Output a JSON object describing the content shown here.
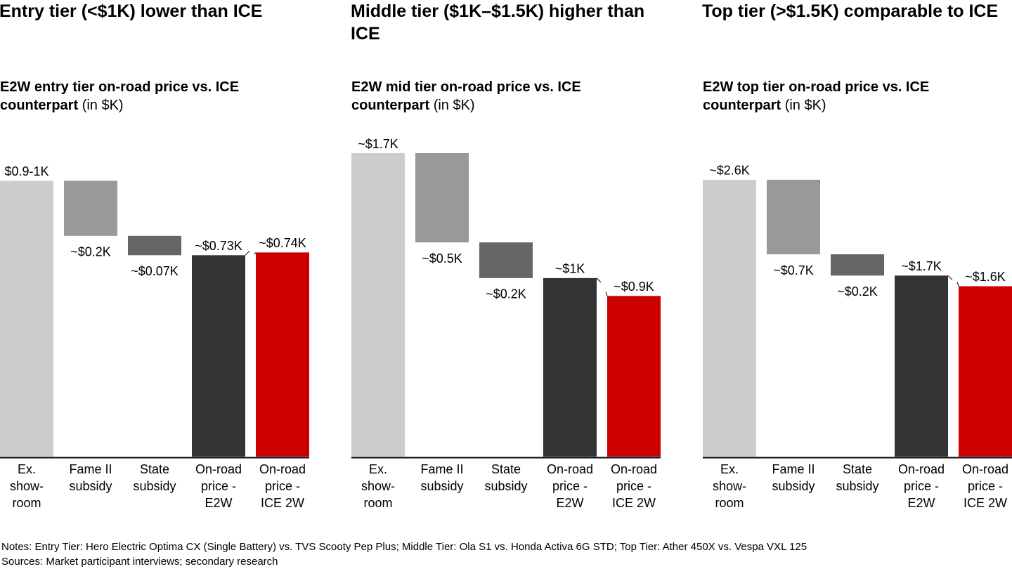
{
  "chart_data": [
    {
      "type": "waterfall",
      "title": "Entry tier (<$1K) lower than ICE",
      "subtitle": "E2W entry tier on-road price vs. ICE counterpart",
      "subtitle_unit": "(in $K)",
      "categories": [
        "Ex.\nshow-\nroom",
        "Fame II\nsubsidy",
        "State\nsubsidy",
        "On-road\nprice -\nE2W",
        "On-road\nprice -\nICE 2W"
      ],
      "measure": [
        "absolute",
        "relative",
        "relative",
        "absolute",
        "absolute"
      ],
      "values": [
        1.0,
        -0.2,
        -0.07,
        0.73,
        0.74
      ],
      "value_labels": [
        "$0.9-1K",
        "~$0.2K",
        "~$0.07K",
        "~$0.73K",
        "~$0.74K"
      ],
      "colors": [
        "#cccccc",
        "#999999",
        "#666666",
        "#333333",
        "#cc0000"
      ],
      "ylim": [
        0,
        1.1
      ]
    },
    {
      "type": "waterfall",
      "title": "Middle tier ($1K–$1.5K) higher than ICE",
      "subtitle": "E2W mid tier on-road price vs. ICE counterpart",
      "subtitle_unit": "(in $K)",
      "categories": [
        "Ex.\nshow-\nroom",
        "Fame II\nsubsidy",
        "State\nsubsidy",
        "On-road\nprice -\nE2W",
        "On-road\nprice -\nICE 2W"
      ],
      "measure": [
        "absolute",
        "relative",
        "relative",
        "absolute",
        "absolute"
      ],
      "values": [
        1.7,
        -0.5,
        -0.2,
        1.0,
        0.9
      ],
      "value_labels": [
        "~$1.7K",
        "~$0.5K",
        "~$0.2K",
        "~$1K",
        "~$0.9K"
      ],
      "colors": [
        "#cccccc",
        "#999999",
        "#666666",
        "#333333",
        "#cc0000"
      ],
      "ylim": [
        0,
        1.7
      ]
    },
    {
      "type": "waterfall",
      "title": "Top tier (>$1.5K) comparable to ICE",
      "subtitle": "E2W top tier on-road price vs. ICE counterpart",
      "subtitle_unit": "(in $K)",
      "categories": [
        "Ex.\nshow-\nroom",
        "Fame II\nsubsidy",
        "State\nsubsidy",
        "On-road\nprice -\nE2W",
        "On-road\nprice -\nICE 2W"
      ],
      "measure": [
        "absolute",
        "relative",
        "relative",
        "absolute",
        "absolute"
      ],
      "values": [
        2.6,
        -0.7,
        -0.2,
        1.7,
        1.6
      ],
      "value_labels": [
        "~$2.6K",
        "~$0.7K",
        "~$0.2K",
        "~$1.7K",
        "~$1.6K"
      ],
      "colors": [
        "#cccccc",
        "#999999",
        "#666666",
        "#333333",
        "#cc0000"
      ],
      "ylim": [
        0,
        2.85
      ]
    }
  ],
  "notes": "Notes: Entry Tier: Hero Electric Optima CX (Single Battery) vs. TVS Scooty Pep Plus; Middle Tier: Ola S1 vs. Honda Activa 6G STD; Top Tier: Ather 450X vs. Vespa VXL 125",
  "sources": "Sources: Market participant interviews; secondary research"
}
